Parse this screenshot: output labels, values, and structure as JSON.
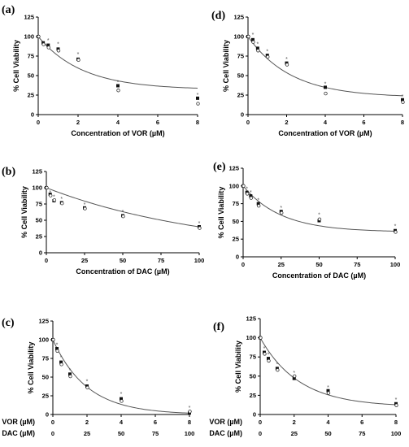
{
  "chart_data": [
    {
      "id": "a",
      "panel_label": "(a)",
      "type": "scatter",
      "xlabel": "Concentration of VOR (µM)",
      "ylabel": "% Cell Viability",
      "xlim": [
        0,
        8
      ],
      "ylim": [
        0,
        125
      ],
      "xticks": [
        "0",
        "2",
        "4",
        "6",
        "8"
      ],
      "xtick_values": [
        0,
        2,
        4,
        6,
        8
      ],
      "yticks": [
        "0",
        "25",
        "50",
        "75",
        "100",
        "125"
      ],
      "ytick_values": [
        0,
        25,
        50,
        75,
        100,
        125
      ],
      "series": [
        {
          "marker": "square-filled",
          "x": [
            0,
            0.25,
            0.5,
            1,
            2,
            4,
            8
          ],
          "y": [
            100,
            92,
            89,
            84,
            71,
            37,
            21
          ]
        },
        {
          "marker": "circle-open",
          "x": [
            0,
            0.25,
            0.5,
            1,
            2,
            4,
            8
          ],
          "y": [
            100,
            90,
            86,
            82,
            70,
            31,
            14
          ]
        }
      ],
      "curve": {
        "bottom": 32,
        "top": 100,
        "k": 0.45
      },
      "significance": {
        "symbol": "*",
        "x": [
          0.5,
          1,
          2,
          4,
          8
        ],
        "y": [
          96,
          91,
          78,
          42,
          26
        ]
      }
    },
    {
      "id": "d",
      "panel_label": "(d)",
      "type": "scatter",
      "xlabel": "Concentration of VOR (µM)",
      "ylabel": "% Cell Viability",
      "xlim": [
        0,
        8
      ],
      "ylim": [
        0,
        125
      ],
      "xticks": [
        "0",
        "2",
        "4",
        "6",
        "8"
      ],
      "xtick_values": [
        0,
        2,
        4,
        6,
        8
      ],
      "yticks": [
        "0",
        "25",
        "50",
        "75",
        "100",
        "125"
      ],
      "ytick_values": [
        0,
        25,
        50,
        75,
        100,
        125
      ],
      "series": [
        {
          "marker": "square-filled",
          "x": [
            0,
            0.25,
            0.5,
            1,
            2,
            4,
            8
          ],
          "y": [
            100,
            96,
            85,
            76,
            66,
            35,
            19
          ]
        },
        {
          "marker": "circle-open",
          "x": [
            0,
            0.25,
            0.5,
            1,
            2,
            4,
            8
          ],
          "y": [
            100,
            93,
            82,
            74,
            64,
            27,
            16
          ]
        }
      ],
      "curve": {
        "bottom": 22,
        "top": 100,
        "k": 0.45
      },
      "significance": {
        "symbol": "*",
        "x": [
          0.25,
          0.5,
          1,
          2,
          4,
          8
        ],
        "y": [
          103,
          91,
          82,
          72,
          40,
          24
        ]
      }
    },
    {
      "id": "b",
      "panel_label": "(b)",
      "type": "scatter",
      "xlabel": "Concentration of DAC (µM)",
      "ylabel": "% Cell Viability",
      "xlim": [
        0,
        100
      ],
      "ylim": [
        0,
        125
      ],
      "xticks": [
        "0",
        "25",
        "50",
        "75",
        "100"
      ],
      "xtick_values": [
        0,
        25,
        50,
        75,
        100
      ],
      "yticks": [
        "0",
        "25",
        "50",
        "75",
        "100",
        "125"
      ],
      "ytick_values": [
        0,
        25,
        50,
        75,
        100,
        125
      ],
      "series": [
        {
          "marker": "square-filled",
          "x": [
            0,
            2.5,
            5,
            10,
            25,
            50,
            100
          ],
          "y": [
            100,
            90,
            80,
            77,
            69,
            57,
            40
          ]
        },
        {
          "marker": "circle-open",
          "x": [
            0,
            2.5,
            5,
            10,
            25,
            50,
            100
          ],
          "y": [
            100,
            88,
            81,
            76,
            68,
            56,
            38
          ]
        }
      ],
      "curve": {
        "bottom": 0,
        "top": 100,
        "k": 0.0092
      },
      "significance": {
        "symbol": "*",
        "x": [
          2.5,
          5,
          10,
          25,
          50,
          100
        ],
        "y": [
          94,
          87,
          84,
          75,
          64,
          46
        ]
      }
    },
    {
      "id": "e",
      "panel_label": "(e)",
      "type": "scatter",
      "xlabel": "Concentration of DAC (µM)",
      "ylabel": "% Cell Viability",
      "xlim": [
        0,
        100
      ],
      "ylim": [
        0,
        125
      ],
      "xticks": [
        "0",
        "25",
        "50",
        "75",
        "100"
      ],
      "xtick_values": [
        0,
        25,
        50,
        75,
        100
      ],
      "yticks": [
        "0",
        "25",
        "50",
        "75",
        "100",
        "125"
      ],
      "ytick_values": [
        0,
        25,
        50,
        75,
        100,
        125
      ],
      "series": [
        {
          "marker": "square-filled",
          "x": [
            0,
            2.5,
            5,
            10,
            25,
            50,
            100
          ],
          "y": [
            100,
            91,
            86,
            75,
            64,
            51,
            37
          ]
        },
        {
          "marker": "circle-open",
          "x": [
            0,
            2.5,
            5,
            10,
            25,
            50,
            100
          ],
          "y": [
            100,
            89,
            83,
            72,
            62,
            53,
            35
          ]
        }
      ],
      "curve": {
        "bottom": 35,
        "top": 100,
        "k": 0.04
      },
      "significance": {
        "symbol": "*",
        "x": [
          2.5,
          5,
          10,
          25,
          50,
          100
        ],
        "y": [
          97,
          92,
          81,
          70,
          60,
          44
        ]
      }
    },
    {
      "id": "c",
      "panel_label": "(c)",
      "type": "scatter",
      "ylabel": "% Cell Viability",
      "x_axis_rows": [
        {
          "label": "VOR (µM)",
          "ticks": [
            "0",
            "2",
            "4",
            "6",
            "8"
          ]
        },
        {
          "label": "DAC (µM)",
          "ticks": [
            "0",
            "25",
            "50",
            "75",
            "100"
          ]
        }
      ],
      "xtick_values": [
        0,
        25,
        50,
        75,
        100
      ],
      "xlim": [
        0,
        100
      ],
      "ylim": [
        0,
        125
      ],
      "yticks": [
        "0",
        "25",
        "50",
        "75",
        "100",
        "125"
      ],
      "ytick_values": [
        0,
        25,
        50,
        75,
        100,
        125
      ],
      "series": [
        {
          "marker": "square-filled",
          "x": [
            0,
            3,
            6,
            12.5,
            25,
            50,
            100
          ],
          "y": [
            100,
            88,
            70,
            54,
            38,
            21,
            2
          ]
        },
        {
          "marker": "circle-open",
          "x": [
            0,
            3,
            6,
            12.5,
            25,
            50,
            100
          ],
          "y": [
            100,
            85,
            67,
            51,
            36,
            18,
            4
          ]
        }
      ],
      "curve": {
        "bottom": 0,
        "top": 100,
        "k": 0.04
      },
      "significance": {
        "symbol": "*",
        "x": [
          3,
          6,
          12.5,
          25,
          50,
          100
        ],
        "y": [
          94,
          77,
          60,
          45,
          28,
          10
        ]
      }
    },
    {
      "id": "f",
      "panel_label": "(f)",
      "type": "scatter",
      "ylabel": "% Cell Viability",
      "x_axis_rows": [
        {
          "label": "VOR (µM)",
          "ticks": [
            "0",
            "2",
            "4",
            "6",
            "8"
          ]
        },
        {
          "label": "DAC (µM)",
          "ticks": [
            "0",
            "25",
            "50",
            "75",
            "100"
          ]
        }
      ],
      "xtick_values": [
        0,
        25,
        50,
        75,
        100
      ],
      "xlim": [
        0,
        100
      ],
      "ylim": [
        0,
        125
      ],
      "yticks": [
        "0",
        "25",
        "50",
        "75",
        "100",
        "125"
      ],
      "ytick_values": [
        0,
        25,
        50,
        75,
        100,
        125
      ],
      "series": [
        {
          "marker": "square-filled",
          "x": [
            0,
            3,
            6,
            12.5,
            25,
            50,
            100
          ],
          "y": [
            100,
            81,
            73,
            60,
            47,
            31,
            14
          ]
        },
        {
          "marker": "circle-open",
          "x": [
            0,
            3,
            6,
            12.5,
            25,
            50,
            100
          ],
          "y": [
            100,
            79,
            70,
            58,
            50,
            28,
            12
          ]
        }
      ],
      "curve": {
        "bottom": 10,
        "top": 100,
        "k": 0.035
      },
      "significance": {
        "symbol": "*",
        "x": [
          3,
          6,
          12.5,
          25,
          50,
          100
        ],
        "y": [
          87,
          79,
          66,
          55,
          36,
          20
        ]
      }
    }
  ]
}
